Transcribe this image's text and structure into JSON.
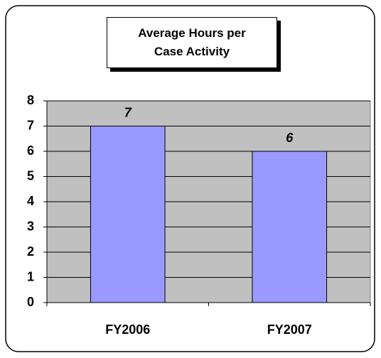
{
  "chart_data": {
    "type": "bar",
    "title": "Average Hours per Case Activity",
    "categories": [
      "FY2006",
      "FY2007"
    ],
    "values": [
      7,
      6
    ],
    "color": "#9999ff",
    "plot_background": "#c0c0c0",
    "ylim": [
      0,
      8
    ],
    "yticks": [
      0,
      1,
      2,
      3,
      4,
      5,
      6,
      7,
      8
    ],
    "grid": true
  }
}
